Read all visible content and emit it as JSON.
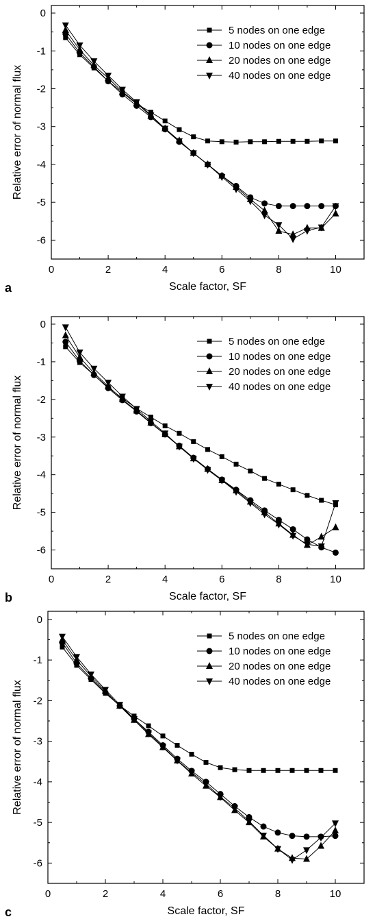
{
  "chart_data": [
    {
      "panel": "a",
      "type": "line",
      "xlabel": "Scale factor, SF",
      "ylabel": "Relative error of normal flux",
      "xlim": [
        0,
        11
      ],
      "ylim": [
        -6.5,
        0.2
      ],
      "xticks": [
        "0",
        "2",
        "4",
        "6",
        "8",
        "10"
      ],
      "yticks": [
        "0",
        "-1",
        "-2",
        "-3",
        "-4",
        "-5",
        "-6"
      ],
      "legend_position": "top-right",
      "x": [
        0.5,
        1.0,
        1.5,
        2.0,
        2.5,
        3.0,
        3.5,
        4.0,
        4.5,
        5.0,
        5.5,
        6.0,
        6.5,
        7.0,
        7.5,
        8.0,
        8.5,
        9.0,
        9.5,
        10.0
      ],
      "series": [
        {
          "name": "5 nodes on one edge",
          "marker": "square",
          "values": [
            -0.65,
            -1.1,
            -1.45,
            -1.8,
            -2.1,
            -2.4,
            -2.62,
            -2.85,
            -3.08,
            -3.27,
            -3.38,
            -3.4,
            -3.41,
            -3.4,
            -3.4,
            -3.39,
            -3.39,
            -3.39,
            -3.38,
            -3.38
          ]
        },
        {
          "name": "10 nodes on one edge",
          "marker": "circle",
          "values": [
            -0.55,
            -1.05,
            -1.42,
            -1.8,
            -2.15,
            -2.45,
            -2.75,
            -3.07,
            -3.4,
            -3.7,
            -4.0,
            -4.3,
            -4.57,
            -4.87,
            -5.03,
            -5.1,
            -5.1,
            -5.1,
            -5.1,
            -5.1
          ]
        },
        {
          "name": "20 nodes on one edge",
          "marker": "triangle-up",
          "values": [
            -0.45,
            -0.97,
            -1.38,
            -1.72,
            -2.08,
            -2.38,
            -2.72,
            -3.05,
            -3.37,
            -3.7,
            -4.0,
            -4.3,
            -4.6,
            -4.92,
            -5.22,
            -5.76,
            -5.85,
            -5.68,
            -5.68,
            -5.3
          ]
        },
        {
          "name": "40 nodes on one edge",
          "marker": "triangle-down",
          "values": [
            -0.32,
            -0.85,
            -1.27,
            -1.65,
            -2.02,
            -2.35,
            -2.7,
            -3.05,
            -3.38,
            -3.7,
            -4.0,
            -4.33,
            -4.65,
            -4.97,
            -5.34,
            -5.6,
            -5.97,
            -5.75,
            -5.66,
            -5.1
          ]
        }
      ]
    },
    {
      "panel": "b",
      "type": "line",
      "xlabel": "Scale factor, SF",
      "ylabel": "Relative error of normal flux",
      "xlim": [
        0,
        11
      ],
      "ylim": [
        -6.5,
        0.2
      ],
      "xticks": [
        "0",
        "2",
        "4",
        "6",
        "8",
        "10"
      ],
      "yticks": [
        "0",
        "-1",
        "-2",
        "-3",
        "-4",
        "-5",
        "-6"
      ],
      "legend_position": "top-right",
      "x": [
        0.5,
        1.0,
        1.5,
        2.0,
        2.5,
        3.0,
        3.5,
        4.0,
        4.5,
        5.0,
        5.5,
        6.0,
        6.5,
        7.0,
        7.5,
        8.0,
        8.5,
        9.0,
        9.5,
        10.0
      ],
      "series": [
        {
          "name": "5 nodes on one edge",
          "marker": "square",
          "values": [
            -0.6,
            -1.02,
            -1.35,
            -1.68,
            -1.97,
            -2.24,
            -2.47,
            -2.7,
            -2.9,
            -3.12,
            -3.33,
            -3.52,
            -3.72,
            -3.9,
            -4.1,
            -4.25,
            -4.4,
            -4.55,
            -4.68,
            -4.8
          ]
        },
        {
          "name": "10 nodes on one edge",
          "marker": "circle",
          "values": [
            -0.47,
            -0.98,
            -1.35,
            -1.7,
            -2.02,
            -2.32,
            -2.63,
            -2.93,
            -3.23,
            -3.55,
            -3.85,
            -4.13,
            -4.4,
            -4.68,
            -4.95,
            -5.2,
            -5.45,
            -5.72,
            -5.93,
            -6.07
          ]
        },
        {
          "name": "20 nodes on one edge",
          "marker": "triangle-up",
          "values": [
            -0.3,
            -0.88,
            -1.3,
            -1.65,
            -2.0,
            -2.3,
            -2.62,
            -2.93,
            -3.25,
            -3.57,
            -3.85,
            -4.15,
            -4.42,
            -4.72,
            -5.0,
            -5.3,
            -5.6,
            -5.87,
            -5.65,
            -5.4
          ]
        },
        {
          "name": "40 nodes on one edge",
          "marker": "triangle-down",
          "values": [
            -0.08,
            -0.75,
            -1.18,
            -1.55,
            -1.92,
            -2.25,
            -2.58,
            -2.9,
            -3.25,
            -3.57,
            -3.87,
            -4.15,
            -4.45,
            -4.75,
            -5.05,
            -5.32,
            -5.62,
            -5.85,
            -5.9,
            -4.75
          ]
        }
      ]
    },
    {
      "panel": "c",
      "type": "line",
      "xlabel": "Scale factor, SF",
      "ylabel": "Relative error of normal flux",
      "xlim": [
        0,
        11
      ],
      "ylim": [
        -6.5,
        0.2
      ],
      "xticks": [
        "0",
        "2",
        "4",
        "6",
        "8",
        "10"
      ],
      "yticks": [
        "0",
        "-1",
        "-2",
        "-3",
        "-4",
        "-5",
        "-6"
      ],
      "legend_position": "top-right",
      "x": [
        0.5,
        1.0,
        1.5,
        2.0,
        2.5,
        3.0,
        3.5,
        4.0,
        4.5,
        5.0,
        5.5,
        6.0,
        6.5,
        7.0,
        7.5,
        8.0,
        8.5,
        9.0,
        9.5,
        10.0
      ],
      "series": [
        {
          "name": "5 nodes on one edge",
          "marker": "square",
          "values": [
            -0.68,
            -1.13,
            -1.48,
            -1.82,
            -2.12,
            -2.38,
            -2.62,
            -2.87,
            -3.1,
            -3.32,
            -3.52,
            -3.65,
            -3.7,
            -3.72,
            -3.72,
            -3.72,
            -3.72,
            -3.72,
            -3.72,
            -3.72
          ]
        },
        {
          "name": "10 nodes on one edge",
          "marker": "circle",
          "values": [
            -0.57,
            -1.08,
            -1.45,
            -1.8,
            -2.13,
            -2.45,
            -2.77,
            -3.1,
            -3.43,
            -3.73,
            -4.0,
            -4.3,
            -4.6,
            -4.87,
            -5.1,
            -5.25,
            -5.33,
            -5.35,
            -5.35,
            -5.33
          ]
        },
        {
          "name": "20 nodes on one edge",
          "marker": "triangle-up",
          "values": [
            -0.5,
            -1.0,
            -1.4,
            -1.77,
            -2.13,
            -2.48,
            -2.83,
            -3.15,
            -3.48,
            -3.8,
            -4.1,
            -4.38,
            -4.7,
            -5.0,
            -5.35,
            -5.65,
            -5.88,
            -5.9,
            -5.58,
            -5.2
          ]
        },
        {
          "name": "40 nodes on one edge",
          "marker": "triangle-down",
          "values": [
            -0.42,
            -0.92,
            -1.35,
            -1.73,
            -2.1,
            -2.45,
            -2.8,
            -3.13,
            -3.47,
            -3.77,
            -4.05,
            -4.37,
            -4.65,
            -4.97,
            -5.32,
            -5.65,
            -5.92,
            -5.68,
            -5.37,
            -5.02
          ]
        }
      ]
    }
  ]
}
